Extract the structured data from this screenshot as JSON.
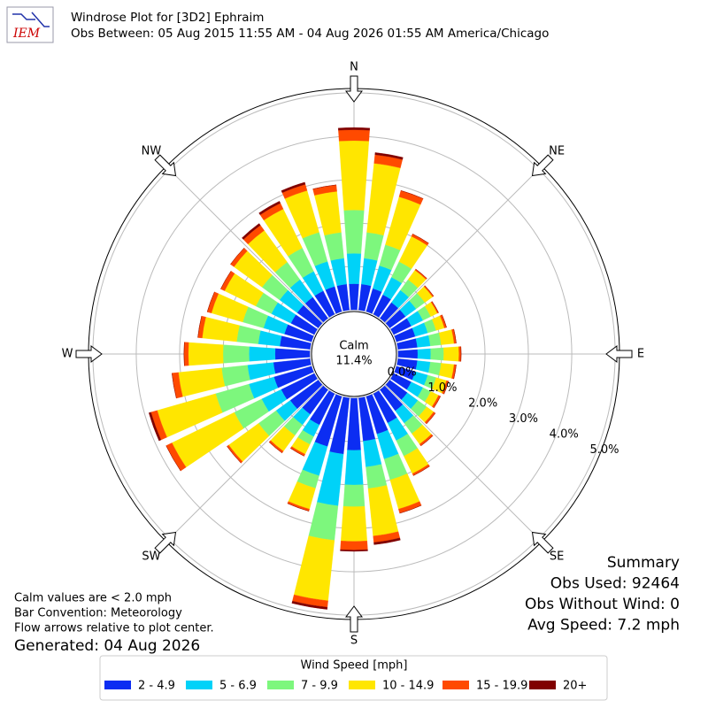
{
  "logo_text": "IEM",
  "chart_data": {
    "type": "windrose",
    "title": "Windrose Plot for [3D2] Ephraim",
    "subtitle": "Obs Between: 05 Aug 2015 11:55 AM - 04 Aug 2026 01:55 AM America/Chicago",
    "x": [
      0,
      10,
      20,
      30,
      40,
      50,
      60,
      70,
      80,
      90,
      100,
      110,
      120,
      130,
      140,
      150,
      160,
      170,
      180,
      190,
      200,
      210,
      220,
      230,
      240,
      250,
      260,
      270,
      280,
      290,
      300,
      310,
      320,
      330,
      340,
      350
    ],
    "xticks": [
      {
        "value": 0,
        "label": "N"
      },
      {
        "value": 45,
        "label": "NE"
      },
      {
        "value": 90,
        "label": "E"
      },
      {
        "value": 135,
        "label": "SE"
      },
      {
        "value": 180,
        "label": "S"
      },
      {
        "value": 225,
        "label": "SW"
      },
      {
        "value": 270,
        "label": "W"
      },
      {
        "value": 315,
        "label": "NW"
      }
    ],
    "ylim": [
      0,
      5.1
    ],
    "yticks": [
      {
        "value": 0,
        "label": "0.0%"
      },
      {
        "value": 1,
        "label": "1.0%"
      },
      {
        "value": 2,
        "label": "2.0%"
      },
      {
        "value": 3,
        "label": "3.0%"
      },
      {
        "value": 4,
        "label": "4.0%"
      },
      {
        "value": 5,
        "label": "5.0%"
      }
    ],
    "grid": true,
    "calm": {
      "label": "Calm",
      "value": 11.4,
      "value_label": "11.4%"
    },
    "legend_title": "Wind Speed [mph]",
    "series": [
      {
        "name": "2 - 4.9",
        "color": "#0c2df2",
        "values": [
          0.6,
          0.6,
          0.55,
          0.5,
          0.45,
          0.45,
          0.45,
          0.45,
          0.45,
          0.45,
          0.45,
          0.45,
          0.45,
          0.5,
          0.6,
          0.75,
          0.9,
          1.0,
          1.2,
          1.3,
          1.2,
          0.8,
          0.7,
          0.8,
          0.85,
          0.9,
          0.85,
          0.8,
          0.7,
          0.65,
          0.6,
          0.6,
          0.6,
          0.6,
          0.6,
          0.6
        ]
      },
      {
        "name": "5 - 6.9",
        "color": "#00d2f8",
        "values": [
          0.7,
          0.6,
          0.55,
          0.45,
          0.35,
          0.3,
          0.3,
          0.3,
          0.3,
          0.3,
          0.3,
          0.3,
          0.3,
          0.3,
          0.35,
          0.45,
          0.6,
          0.6,
          0.8,
          1.2,
          0.7,
          0.3,
          0.3,
          0.4,
          0.5,
          0.6,
          0.6,
          0.6,
          0.5,
          0.5,
          0.5,
          0.5,
          0.5,
          0.5,
          0.6,
          0.6
        ]
      },
      {
        "name": "7 - 9.9",
        "color": "#7df77d",
        "values": [
          1.0,
          0.6,
          0.5,
          0.4,
          0.3,
          0.25,
          0.2,
          0.2,
          0.25,
          0.3,
          0.25,
          0.2,
          0.2,
          0.25,
          0.3,
          0.4,
          0.5,
          0.5,
          0.5,
          0.8,
          0.3,
          0.2,
          0.3,
          0.5,
          0.7,
          0.8,
          0.6,
          0.6,
          0.5,
          0.5,
          0.4,
          0.5,
          0.5,
          0.6,
          0.7,
          0.6
        ]
      },
      {
        "name": "10 - 14.9",
        "color": "#ffe600",
        "values": [
          1.6,
          1.6,
          1.15,
          0.65,
          0.27,
          0.22,
          0.17,
          0.2,
          0.3,
          0.35,
          0.3,
          0.25,
          0.2,
          0.2,
          0.3,
          0.45,
          0.7,
          1.1,
          0.8,
          1.4,
          0.5,
          0.25,
          0.45,
          0.85,
          1.6,
          1.4,
          1.0,
          0.8,
          0.8,
          0.75,
          0.8,
          0.8,
          0.9,
          1.0,
          1.0,
          0.95
        ]
      },
      {
        "name": "15 - 19.9",
        "color": "#ff4a00",
        "values": [
          0.25,
          0.2,
          0.15,
          0.06,
          0.03,
          0.03,
          0.03,
          0.05,
          0.05,
          0.05,
          0.05,
          0.05,
          0.05,
          0.05,
          0.05,
          0.05,
          0.1,
          0.15,
          0.2,
          0.15,
          0.05,
          0.05,
          0.05,
          0.05,
          0.15,
          0.15,
          0.15,
          0.1,
          0.1,
          0.1,
          0.1,
          0.1,
          0.15,
          0.15,
          0.15,
          0.15
        ]
      },
      {
        "name": "20+",
        "color": "#800000",
        "values": [
          0.05,
          0.05,
          0,
          0,
          0,
          0,
          0,
          0,
          0,
          0,
          0,
          0,
          0,
          0,
          0,
          0,
          0,
          0.05,
          0.03,
          0.05,
          0,
          0,
          0,
          0,
          0,
          0.05,
          0,
          0,
          0,
          0,
          0,
          0,
          0.05,
          0.05,
          0.05,
          0
        ]
      }
    ],
    "notes": [
      "Calm values are < 2.0 mph",
      "Bar Convention: Meteorology",
      "Flow arrows relative to plot center."
    ],
    "generated": "Generated: 04 Aug 2026",
    "summary": [
      "Summary",
      "Obs Used: 92464",
      "Obs Without Wind: 0",
      "Avg Speed: 7.2 mph"
    ]
  }
}
